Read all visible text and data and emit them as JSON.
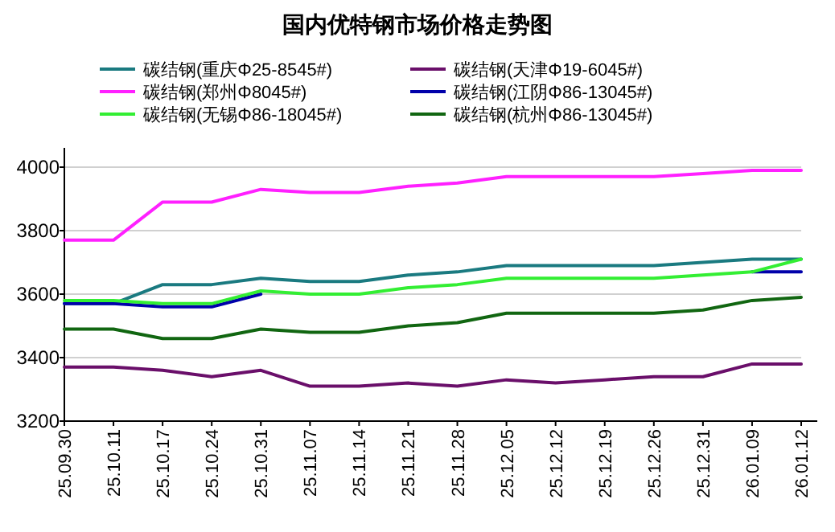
{
  "chart_data": {
    "type": "line",
    "title": "国内优特钢市场价格走势图",
    "categories": [
      "25.09.30",
      "25.10.11",
      "25.10.17",
      "25.10.24",
      "25.10.31",
      "25.11.07",
      "25.11.14",
      "25.11.21",
      "25.11.28",
      "25.12.05",
      "25.12.12",
      "25.12.19",
      "25.12.26",
      "25.12.31",
      "26.01.09",
      "26.01.12"
    ],
    "series": [
      {
        "name": "碳结钢(重庆Φ25-8545#)",
        "color": "#1a7a80",
        "values": [
          3570,
          3570,
          3630,
          3630,
          3650,
          3640,
          3640,
          3660,
          3670,
          3690,
          3690,
          3690,
          3690,
          3700,
          3710,
          3710
        ]
      },
      {
        "name": "碳结钢(天津Φ19-6045#)",
        "color": "#6a0f6a",
        "values": [
          3370,
          3370,
          3360,
          3340,
          3360,
          3310,
          3310,
          3320,
          3310,
          3330,
          3320,
          3330,
          3340,
          3340,
          3380,
          3380
        ]
      },
      {
        "name": "碳结钢(郑州Φ8045#)",
        "color": "#ff20ff",
        "values": [
          3770,
          3770,
          3890,
          3890,
          3930,
          3920,
          3920,
          3940,
          3950,
          3970,
          3970,
          3970,
          3970,
          3980,
          3990,
          3990
        ]
      },
      {
        "name": "碳结钢(江阴Φ86-13045#)",
        "color": "#0000aa",
        "values": [
          3570,
          3570,
          3560,
          3560,
          3600,
          null,
          null,
          null,
          null,
          null,
          null,
          null,
          null,
          null,
          3670,
          3670
        ]
      },
      {
        "name": "碳结钢(无锡Φ86-18045#)",
        "color": "#33ee33",
        "values": [
          3580,
          3580,
          3570,
          3570,
          3610,
          3600,
          3600,
          3620,
          3630,
          3650,
          3650,
          3650,
          3650,
          3660,
          3670,
          3710
        ]
      },
      {
        "name": "碳结钢(杭州Φ86-13045#)",
        "color": "#116611",
        "values": [
          3490,
          3490,
          3460,
          3460,
          3490,
          3480,
          3480,
          3500,
          3510,
          3540,
          3540,
          3540,
          3540,
          3550,
          3580,
          3590
        ]
      }
    ],
    "ylim": [
      3200,
      4000
    ],
    "yticks": [
      3200,
      3400,
      3600,
      3800,
      4000
    ],
    "grid": "y",
    "legend": "top",
    "marker": "none",
    "line_style": "solid"
  }
}
